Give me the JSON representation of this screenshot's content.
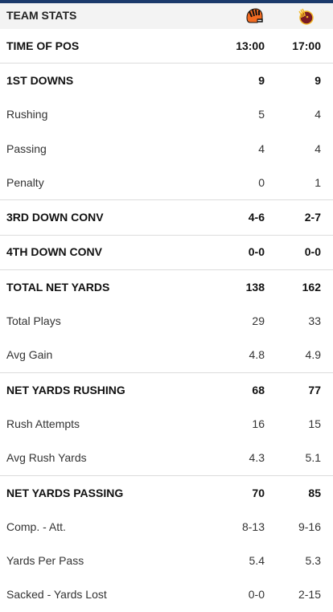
{
  "header": {
    "title": "TEAM STATS",
    "home_team_icon": "bengals-helmet-icon",
    "away_team_icon": "redskins-logo-icon"
  },
  "colors": {
    "top_bar": "#1b3a6b",
    "header_bg": "#f3f3f3",
    "divider": "#dcdcdc",
    "bengals_orange": "#f26b21",
    "bengals_black": "#111111",
    "redskins_burgundy": "#7a1a24",
    "redskins_gold": "#f3b824"
  },
  "rows": [
    {
      "label": "TIME OF POS",
      "home": "13:00",
      "away": "17:00",
      "section": true
    },
    {
      "label": "1ST DOWNS",
      "home": "9",
      "away": "9",
      "section": true
    },
    {
      "label": "Rushing",
      "home": "5",
      "away": "4",
      "section": false
    },
    {
      "label": "Passing",
      "home": "4",
      "away": "4",
      "section": false
    },
    {
      "label": "Penalty",
      "home": "0",
      "away": "1",
      "section": false
    },
    {
      "label": "3RD DOWN CONV",
      "home": "4-6",
      "away": "2-7",
      "section": true
    },
    {
      "label": "4TH DOWN CONV",
      "home": "0-0",
      "away": "0-0",
      "section": true
    },
    {
      "label": "TOTAL NET YARDS",
      "home": "138",
      "away": "162",
      "section": true
    },
    {
      "label": "Total Plays",
      "home": "29",
      "away": "33",
      "section": false
    },
    {
      "label": "Avg Gain",
      "home": "4.8",
      "away": "4.9",
      "section": false
    },
    {
      "label": "NET YARDS RUSHING",
      "home": "68",
      "away": "77",
      "section": true
    },
    {
      "label": "Rush Attempts",
      "home": "16",
      "away": "15",
      "section": false
    },
    {
      "label": "Avg Rush Yards",
      "home": "4.3",
      "away": "5.1",
      "section": false
    },
    {
      "label": "NET YARDS PASSING",
      "home": "70",
      "away": "85",
      "section": true
    },
    {
      "label": "Comp. - Att.",
      "home": "8-13",
      "away": "9-16",
      "section": false
    },
    {
      "label": "Yards Per Pass",
      "home": "5.4",
      "away": "5.3",
      "section": false
    },
    {
      "label": "Sacked - Yards Lost",
      "home": "0-0",
      "away": "2-15",
      "section": false
    }
  ]
}
